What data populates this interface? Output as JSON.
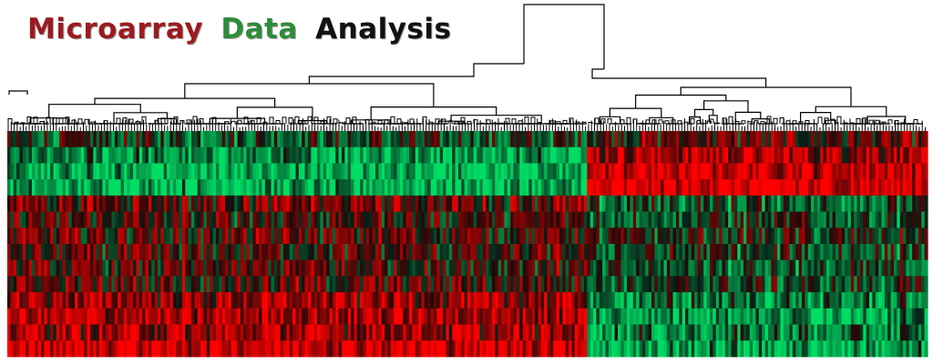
{
  "title": {
    "word1": "Microarray",
    "word2": "Data",
    "word3": "Analysis",
    "color1": "#9b1b1f",
    "color2": "#2e8b3a",
    "color3": "#111111"
  },
  "colors": {
    "up": "#ff2020",
    "down": "#20e060",
    "neutral": "#000000",
    "background": "#ffffff",
    "tree": "#000000"
  },
  "heatmap": {
    "rows": 14,
    "cols": 300,
    "switch_fraction": 0.63
  }
}
